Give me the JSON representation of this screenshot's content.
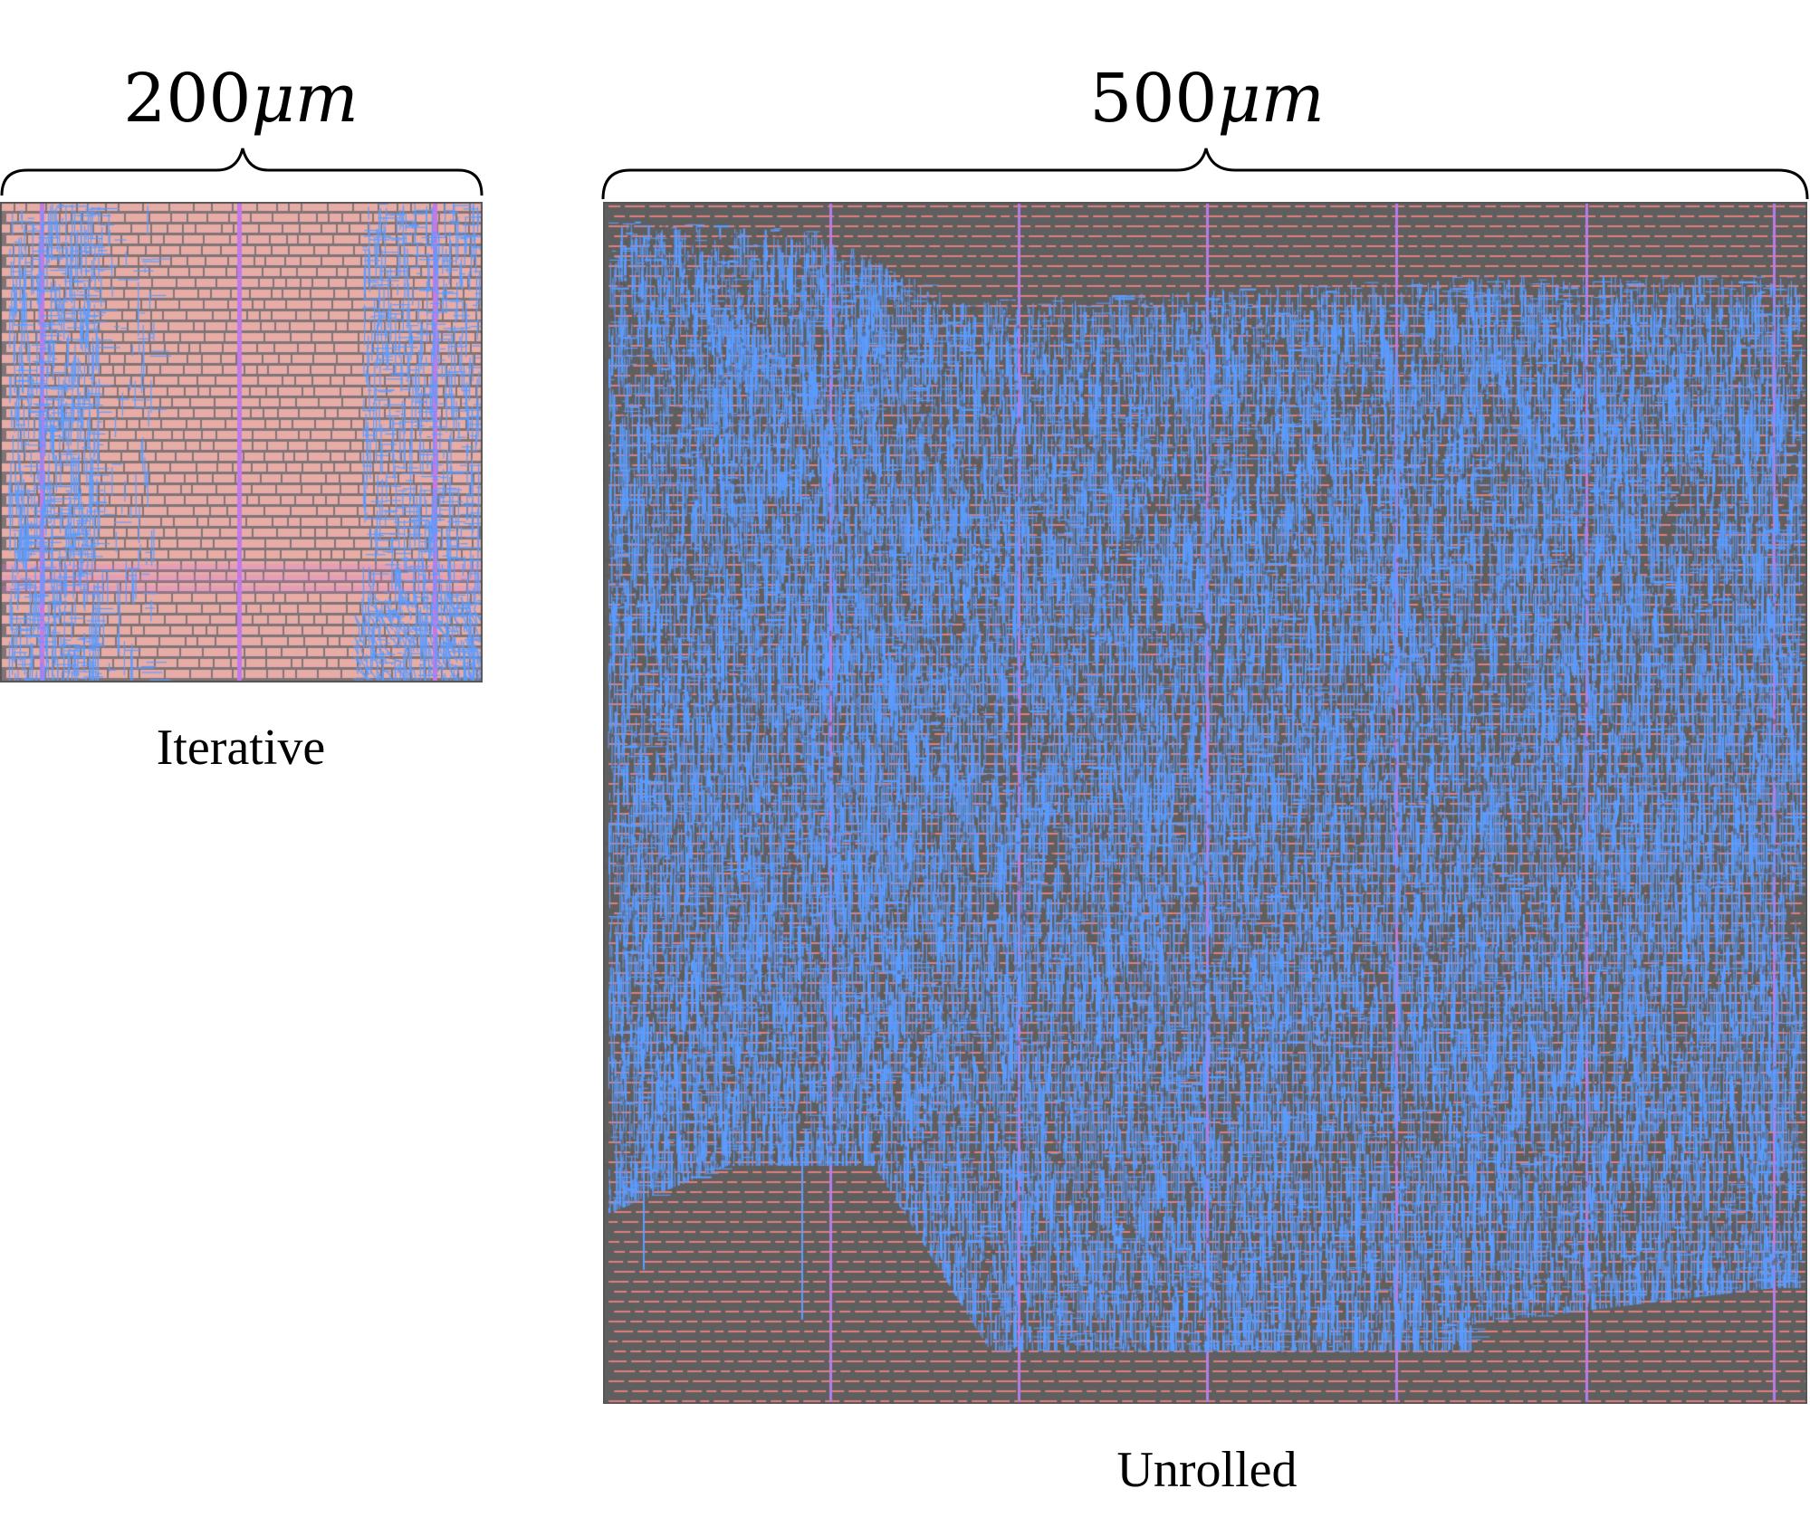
{
  "iterative": {
    "dimension_value": "200",
    "dimension_unit": "μm",
    "caption": "Iterative",
    "colors": {
      "background": "#e8b3b3",
      "cell": "#e7a9a3",
      "cell_gap": "#6a6468",
      "power_stripe": "#c27ae8",
      "routing": "#5c9cff"
    }
  },
  "unrolled": {
    "dimension_value": "500",
    "dimension_unit": "μm",
    "caption": "Unrolled",
    "colors": {
      "background": "#5f5f60",
      "cell": "#e27e7c",
      "power_stripe": "#b77ce6",
      "routing": "#5b9cff"
    }
  }
}
